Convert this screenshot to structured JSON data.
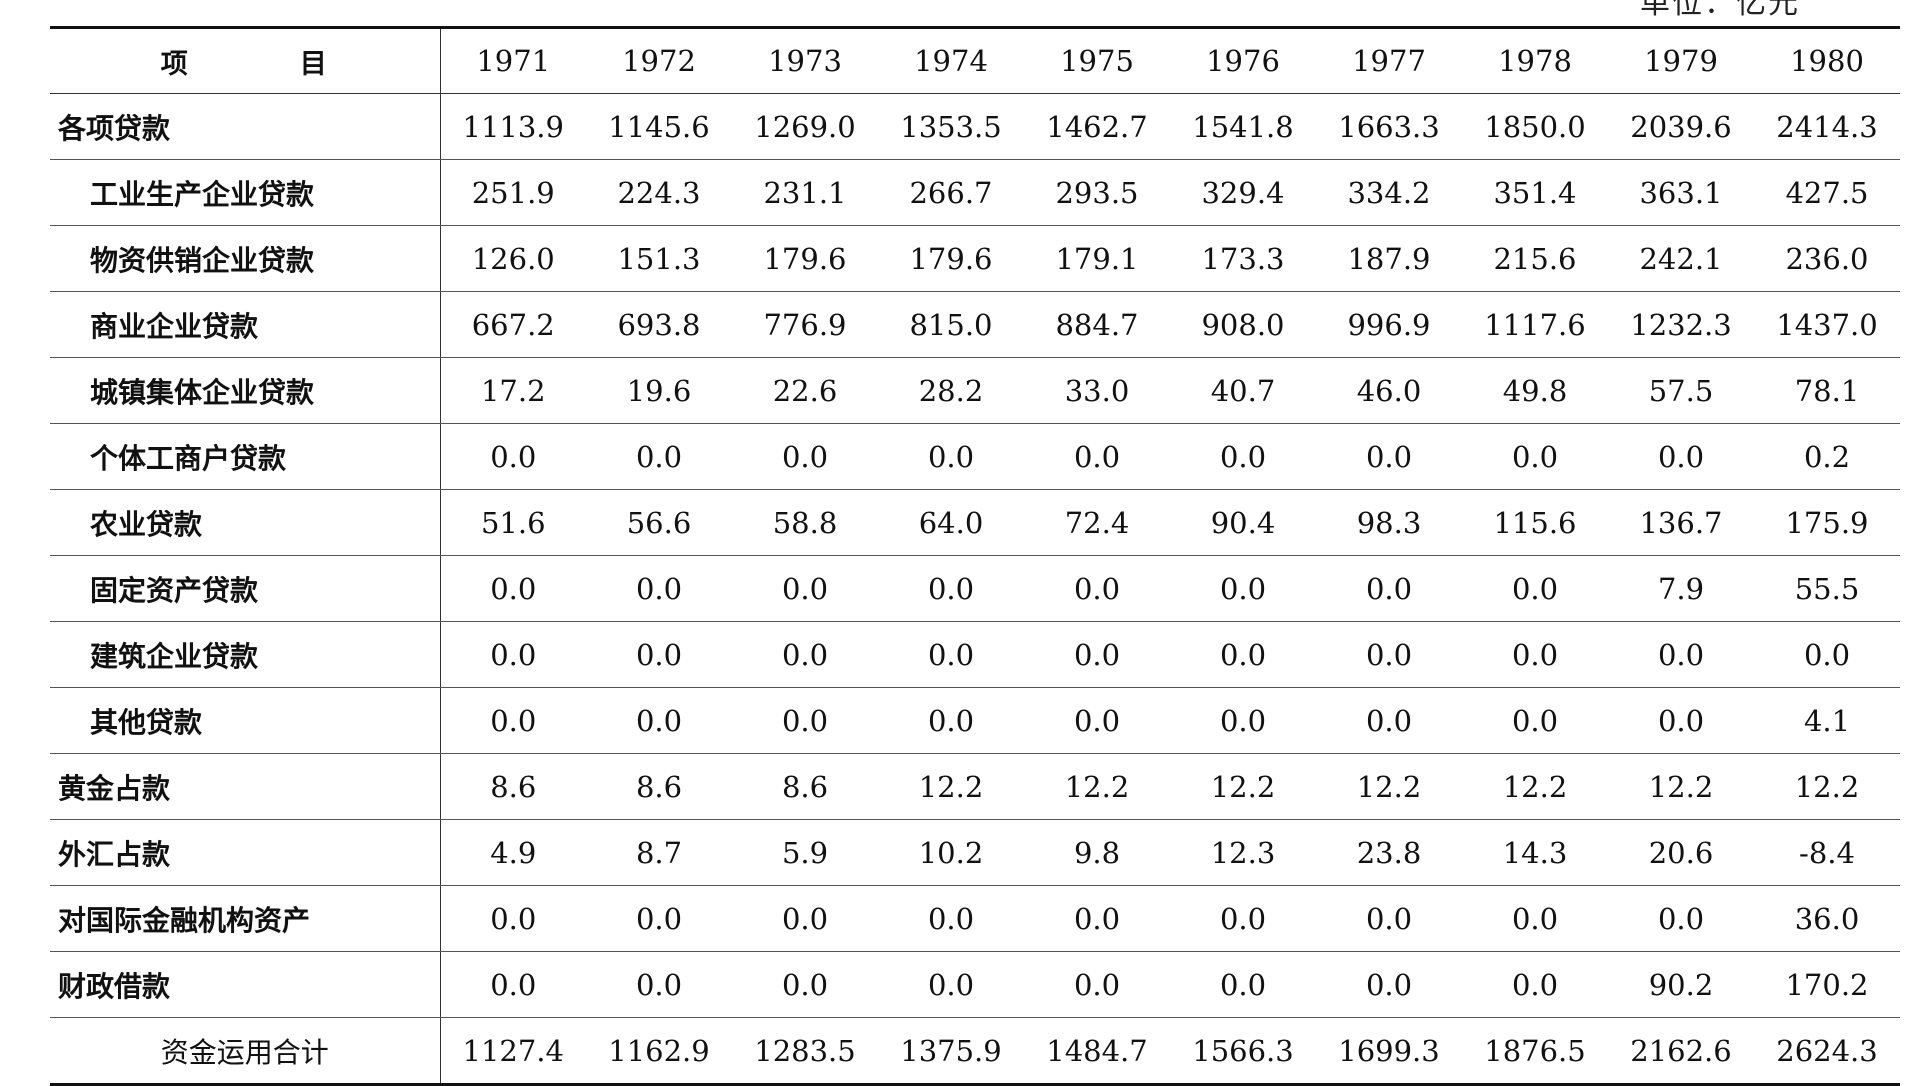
{
  "unit": "单位：亿元",
  "table": {
    "header": {
      "item_label_a": "项",
      "item_label_b": "目",
      "years": [
        "1971",
        "1972",
        "1973",
        "1974",
        "1975",
        "1976",
        "1977",
        "1978",
        "1979",
        "1980"
      ]
    },
    "rows": [
      {
        "label": "各项贷款",
        "indent": 0,
        "values": [
          "1113.9",
          "1145.6",
          "1269.0",
          "1353.5",
          "1462.7",
          "1541.8",
          "1663.3",
          "1850.0",
          "2039.6",
          "2414.3"
        ]
      },
      {
        "label": "工业生产企业贷款",
        "indent": 1,
        "values": [
          "251.9",
          "224.3",
          "231.1",
          "266.7",
          "293.5",
          "329.4",
          "334.2",
          "351.4",
          "363.1",
          "427.5"
        ]
      },
      {
        "label": "物资供销企业贷款",
        "indent": 1,
        "values": [
          "126.0",
          "151.3",
          "179.6",
          "179.6",
          "179.1",
          "173.3",
          "187.9",
          "215.6",
          "242.1",
          "236.0"
        ]
      },
      {
        "label": "商业企业贷款",
        "indent": 1,
        "values": [
          "667.2",
          "693.8",
          "776.9",
          "815.0",
          "884.7",
          "908.0",
          "996.9",
          "1117.6",
          "1232.3",
          "1437.0"
        ]
      },
      {
        "label": "城镇集体企业贷款",
        "indent": 1,
        "values": [
          "17.2",
          "19.6",
          "22.6",
          "28.2",
          "33.0",
          "40.7",
          "46.0",
          "49.8",
          "57.5",
          "78.1"
        ]
      },
      {
        "label": "个体工商户贷款",
        "indent": 1,
        "values": [
          "0.0",
          "0.0",
          "0.0",
          "0.0",
          "0.0",
          "0.0",
          "0.0",
          "0.0",
          "0.0",
          "0.2"
        ]
      },
      {
        "label": "农业贷款",
        "indent": 1,
        "values": [
          "51.6",
          "56.6",
          "58.8",
          "64.0",
          "72.4",
          "90.4",
          "98.3",
          "115.6",
          "136.7",
          "175.9"
        ]
      },
      {
        "label": "固定资产贷款",
        "indent": 1,
        "values": [
          "0.0",
          "0.0",
          "0.0",
          "0.0",
          "0.0",
          "0.0",
          "0.0",
          "0.0",
          "7.9",
          "55.5"
        ]
      },
      {
        "label": "建筑企业贷款",
        "indent": 1,
        "values": [
          "0.0",
          "0.0",
          "0.0",
          "0.0",
          "0.0",
          "0.0",
          "0.0",
          "0.0",
          "0.0",
          "0.0"
        ]
      },
      {
        "label": "其他贷款",
        "indent": 1,
        "values": [
          "0.0",
          "0.0",
          "0.0",
          "0.0",
          "0.0",
          "0.0",
          "0.0",
          "0.0",
          "0.0",
          "4.1"
        ]
      },
      {
        "label": "黄金占款",
        "indent": 0,
        "values": [
          "8.6",
          "8.6",
          "8.6",
          "12.2",
          "12.2",
          "12.2",
          "12.2",
          "12.2",
          "12.2",
          "12.2"
        ]
      },
      {
        "label": "外汇占款",
        "indent": 0,
        "values": [
          "4.9",
          "8.7",
          "5.9",
          "10.2",
          "9.8",
          "12.3",
          "23.8",
          "14.3",
          "20.6",
          "-8.4"
        ]
      },
      {
        "label": "对国际金融机构资产",
        "indent": 0,
        "values": [
          "0.0",
          "0.0",
          "0.0",
          "0.0",
          "0.0",
          "0.0",
          "0.0",
          "0.0",
          "0.0",
          "36.0"
        ]
      },
      {
        "label": "财政借款",
        "indent": 0,
        "values": [
          "0.0",
          "0.0",
          "0.0",
          "0.0",
          "0.0",
          "0.0",
          "0.0",
          "0.0",
          "90.2",
          "170.2"
        ]
      }
    ],
    "total": {
      "label": "资金运用合计",
      "values": [
        "1127.4",
        "1162.9",
        "1283.5",
        "1375.9",
        "1484.7",
        "1566.3",
        "1699.3",
        "1876.5",
        "2162.6",
        "2624.3"
      ]
    }
  }
}
